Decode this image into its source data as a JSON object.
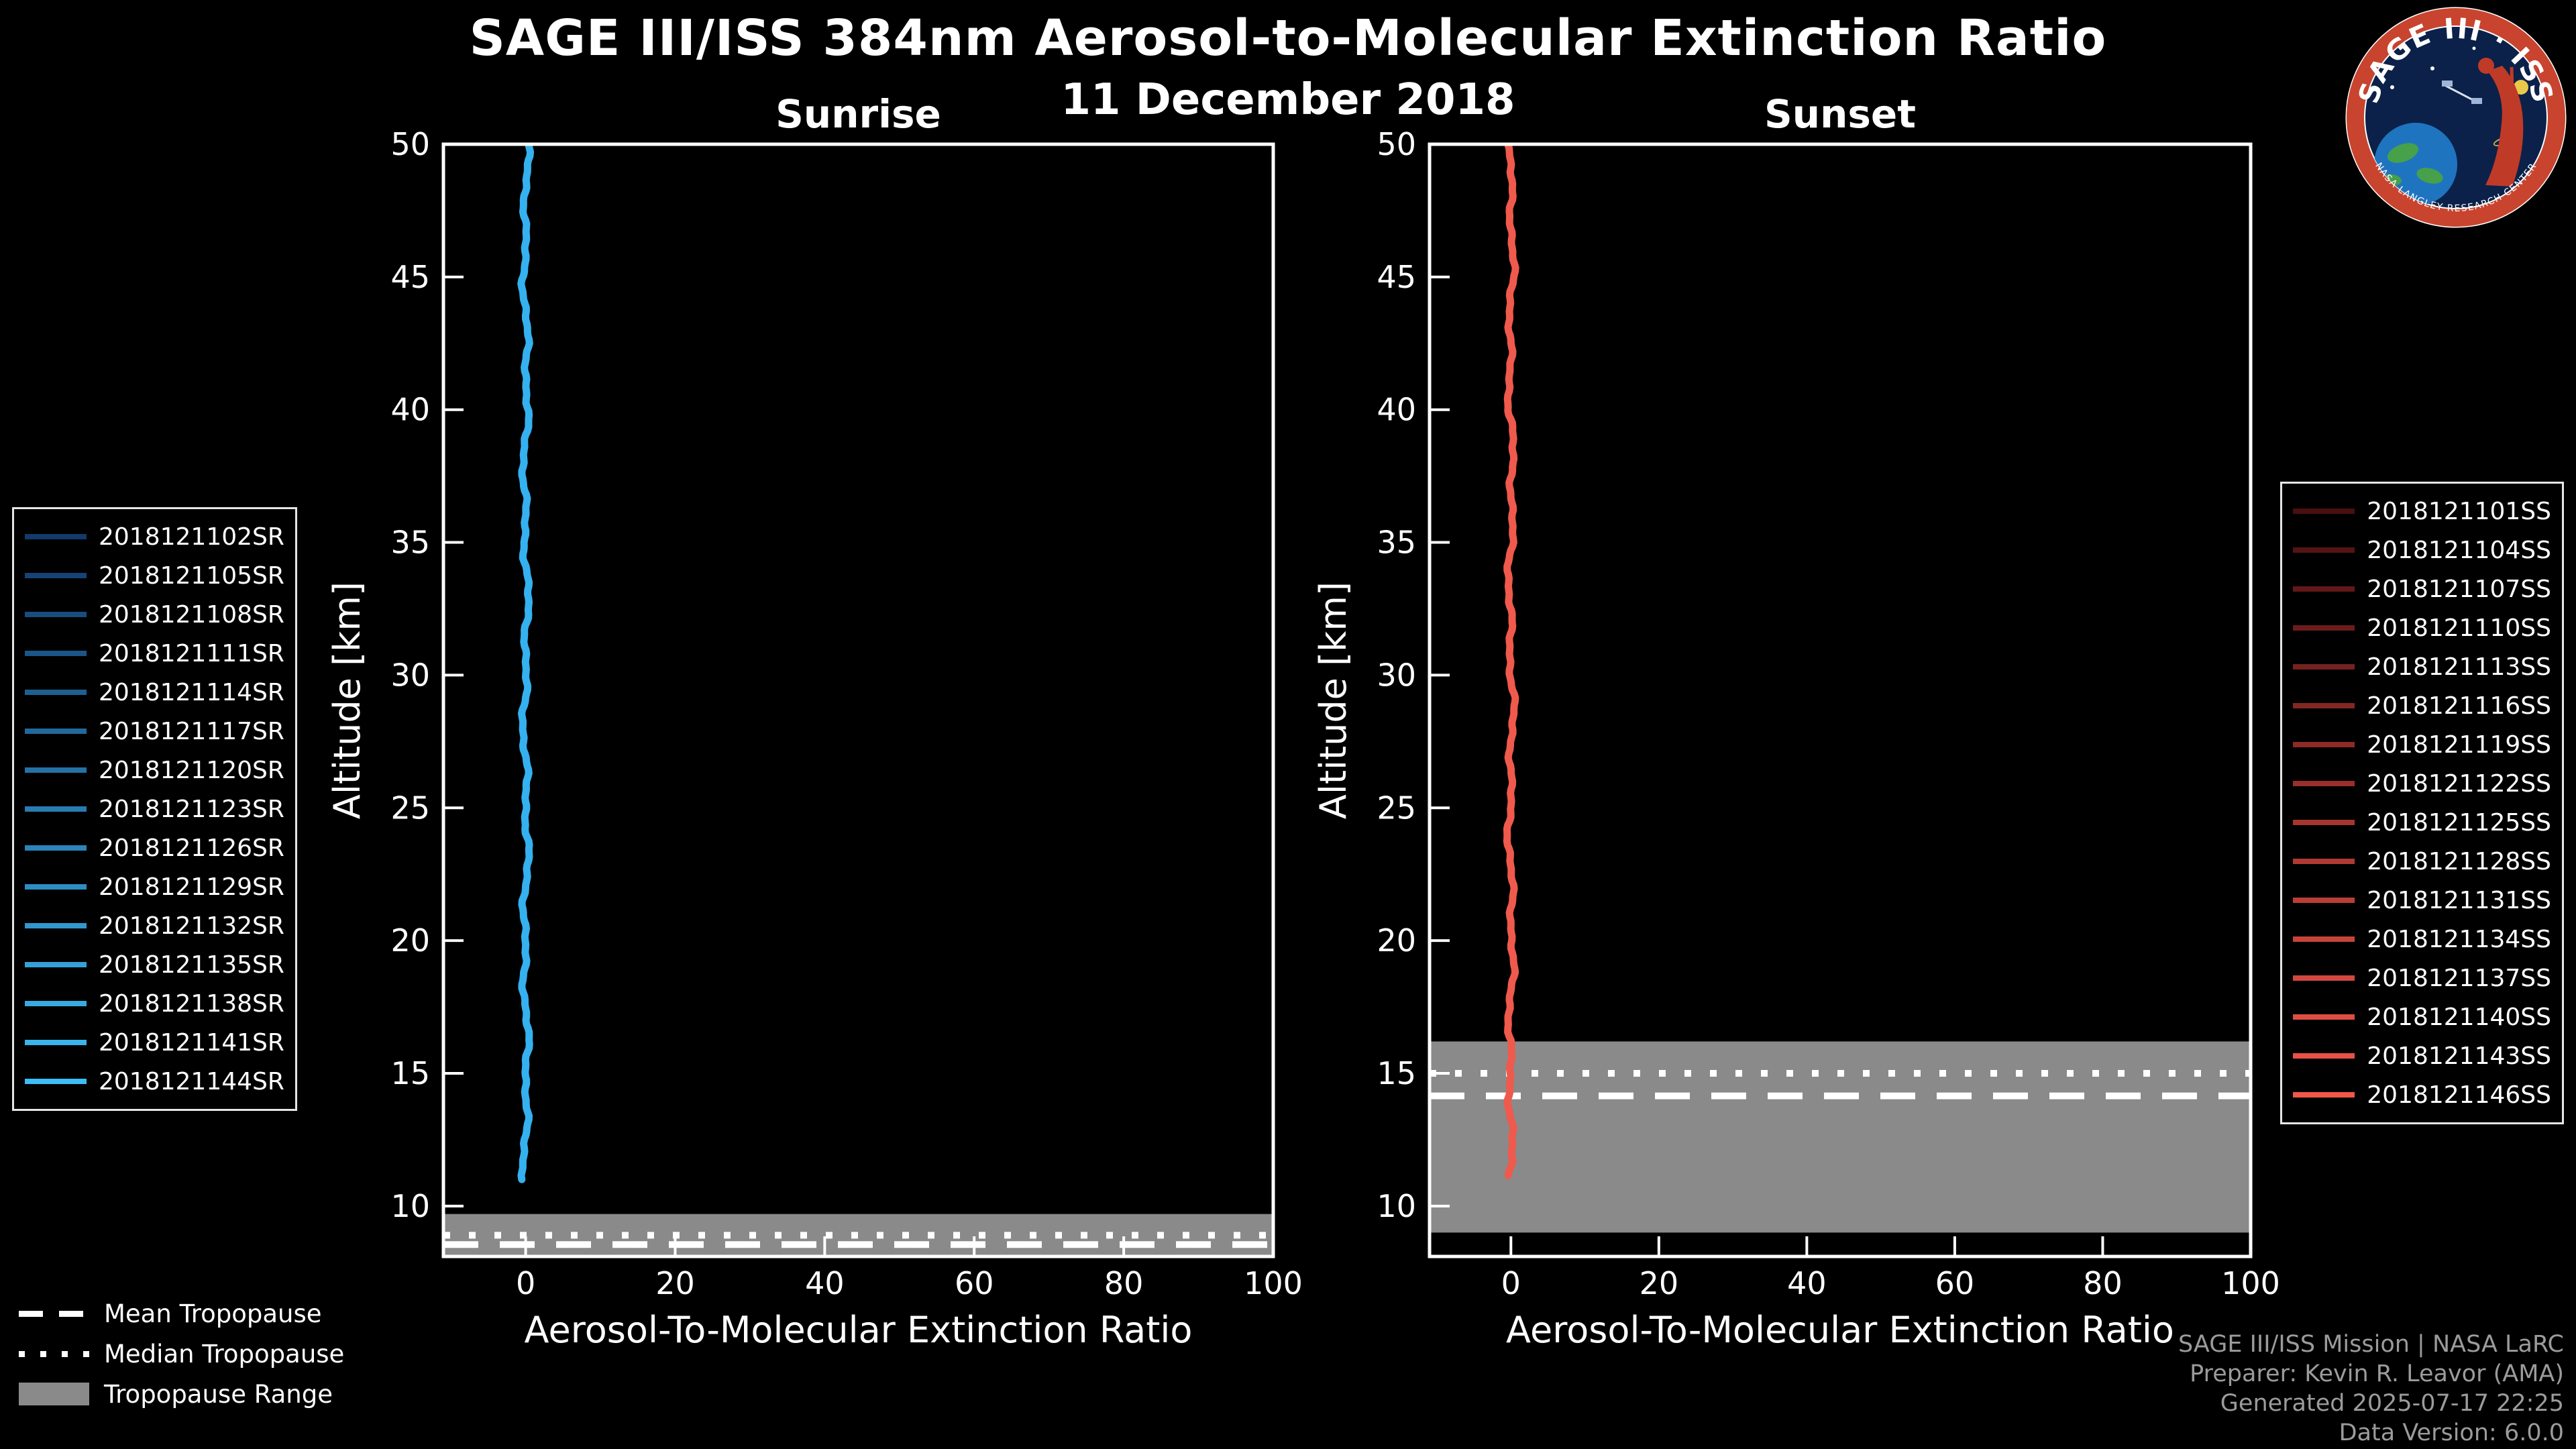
{
  "header": {
    "title": "SAGE III/ISS 384nm Aerosol-to-Molecular Extinction Ratio",
    "subtitle": "11 December 2018"
  },
  "logo": {
    "text": "SAGE III · ISS",
    "ring_text": "NASA LANGLEY RESEARCH CENTER"
  },
  "colors": {
    "background": "#000000",
    "axis": "#ffffff",
    "tropopause_band": "#8a8a8a",
    "sunrise_line": "#35b1ef",
    "sunset_line": "#ef5a4c"
  },
  "panels": [
    {
      "id": "sunrise",
      "label": "Sunrise",
      "line_color": "#35b1ef",
      "x_axis": {
        "label": "Aerosol-To-Molecular Extinction Ratio",
        "ticks": [
          0,
          20,
          40,
          60,
          80,
          100
        ],
        "range": [
          -11,
          100
        ]
      },
      "y_axis": {
        "label": "Altitude [km]",
        "ticks": [
          10,
          15,
          20,
          25,
          30,
          35,
          40,
          45,
          50
        ],
        "range": [
          8.1,
          50
        ]
      },
      "profile": {
        "ratio_center": 0,
        "alt_min": 11.0,
        "alt_max": 50
      },
      "tropopause": {
        "range": [
          8.1,
          9.7
        ],
        "mean": 8.55,
        "median": 8.9
      },
      "legend": [
        {
          "label": "2018121102SR",
          "color": "#123a6b"
        },
        {
          "label": "2018121105SR",
          "color": "#154375"
        },
        {
          "label": "2018121108SR",
          "color": "#184d7f"
        },
        {
          "label": "2018121111SR",
          "color": "#1b5689"
        },
        {
          "label": "2018121114SR",
          "color": "#1e5f92"
        },
        {
          "label": "2018121117SR",
          "color": "#21699c"
        },
        {
          "label": "2018121120SR",
          "color": "#2472a6"
        },
        {
          "label": "2018121123SR",
          "color": "#287cb0"
        },
        {
          "label": "2018121126SR",
          "color": "#2b85ba"
        },
        {
          "label": "2018121129SR",
          "color": "#2e8ec4"
        },
        {
          "label": "2018121132SR",
          "color": "#3198ce"
        },
        {
          "label": "2018121135SR",
          "color": "#34a1d7"
        },
        {
          "label": "2018121138SR",
          "color": "#37aae1"
        },
        {
          "label": "2018121141SR",
          "color": "#3ab4eb"
        },
        {
          "label": "2018121144SR",
          "color": "#3dbdf5"
        }
      ]
    },
    {
      "id": "sunset",
      "label": "Sunset",
      "line_color": "#ef5a4c",
      "x_axis": {
        "label": "Aerosol-To-Molecular Extinction Ratio",
        "ticks": [
          0,
          20,
          40,
          60,
          80,
          100
        ],
        "range": [
          -11,
          100
        ]
      },
      "y_axis": {
        "label": "Altitude [km]",
        "ticks": [
          10,
          15,
          20,
          25,
          30,
          35,
          40,
          45,
          50
        ],
        "range": [
          8.1,
          50
        ]
      },
      "profile": {
        "ratio_center": 0,
        "alt_min": 11.15,
        "alt_max": 50
      },
      "tropopause": {
        "range": [
          9.0,
          16.2
        ],
        "mean": 14.15,
        "median": 15.0
      },
      "legend": [
        {
          "label": "2018121101SS",
          "color": "#4a0f0f"
        },
        {
          "label": "2018121104SS",
          "color": "#551413"
        },
        {
          "label": "2018121107SS",
          "color": "#611817"
        },
        {
          "label": "2018121110SS",
          "color": "#6c1d1b"
        },
        {
          "label": "2018121113SS",
          "color": "#77221f"
        },
        {
          "label": "2018121116SS",
          "color": "#832723"
        },
        {
          "label": "2018121119SS",
          "color": "#8e2b27"
        },
        {
          "label": "2018121122SS",
          "color": "#99302b"
        },
        {
          "label": "2018121125SS",
          "color": "#a5352e"
        },
        {
          "label": "2018121128SS",
          "color": "#b03a32"
        },
        {
          "label": "2018121131SS",
          "color": "#bb3e36"
        },
        {
          "label": "2018121134SS",
          "color": "#c7433a"
        },
        {
          "label": "2018121137SS",
          "color": "#d2483e"
        },
        {
          "label": "2018121140SS",
          "color": "#dd4d42"
        },
        {
          "label": "2018121143SS",
          "color": "#e95146"
        },
        {
          "label": "2018121146SS",
          "color": "#f4564a"
        }
      ]
    }
  ],
  "tropopause_legend": [
    {
      "label": "Mean Tropopause",
      "style": "dashed"
    },
    {
      "label": "Median Tropopause",
      "style": "dotted"
    },
    {
      "label": "Tropopause Range",
      "style": "band"
    }
  ],
  "credits": [
    "SAGE III/ISS Mission | NASA LaRC",
    "Preparer: Kevin R. Leavor (AMA)",
    "Generated 2025-07-17 22:25",
    "Data Version: 6.0.0"
  ],
  "chart_data": [
    {
      "type": "line",
      "title": "Sunrise",
      "suptitle": "SAGE III/ISS 384nm Aerosol-to-Molecular Extinction Ratio — 11 December 2018",
      "xlabel": "Aerosol-To-Molecular Extinction Ratio",
      "ylabel": "Altitude [km]",
      "xlim": [
        -11,
        100
      ],
      "ylim": [
        8,
        50
      ],
      "xticks": [
        0,
        20,
        40,
        60,
        80,
        100
      ],
      "yticks": [
        10,
        15,
        20,
        25,
        30,
        35,
        40,
        45,
        50
      ],
      "grid": false,
      "legend_position": "outside-left",
      "series_names": [
        "2018121102SR",
        "2018121105SR",
        "2018121108SR",
        "2018121111SR",
        "2018121114SR",
        "2018121117SR",
        "2018121120SR",
        "2018121123SR",
        "2018121126SR",
        "2018121129SR",
        "2018121132SR",
        "2018121135SR",
        "2018121138SR",
        "2018121141SR",
        "2018121144SR"
      ],
      "series_ratio_approx": 0,
      "series_altitude_range_km": [
        11,
        50
      ],
      "tropopause": {
        "range_km": [
          8.1,
          9.7
        ],
        "mean_km": 8.55,
        "median_km": 8.9
      }
    },
    {
      "type": "line",
      "title": "Sunset",
      "xlabel": "Aerosol-To-Molecular Extinction Ratio",
      "ylabel": "Altitude [km]",
      "xlim": [
        -11,
        100
      ],
      "ylim": [
        8,
        50
      ],
      "xticks": [
        0,
        20,
        40,
        60,
        80,
        100
      ],
      "yticks": [
        10,
        15,
        20,
        25,
        30,
        35,
        40,
        45,
        50
      ],
      "grid": false,
      "legend_position": "outside-right",
      "series_names": [
        "2018121101SS",
        "2018121104SS",
        "2018121107SS",
        "2018121110SS",
        "2018121113SS",
        "2018121116SS",
        "2018121119SS",
        "2018121122SS",
        "2018121125SS",
        "2018121128SS",
        "2018121131SS",
        "2018121134SS",
        "2018121137SS",
        "2018121140SS",
        "2018121143SS",
        "2018121146SS"
      ],
      "series_ratio_approx": 0,
      "series_altitude_range_km": [
        11.15,
        50
      ],
      "tropopause": {
        "range_km": [
          9.0,
          16.2
        ],
        "mean_km": 14.15,
        "median_km": 15.0
      }
    }
  ]
}
